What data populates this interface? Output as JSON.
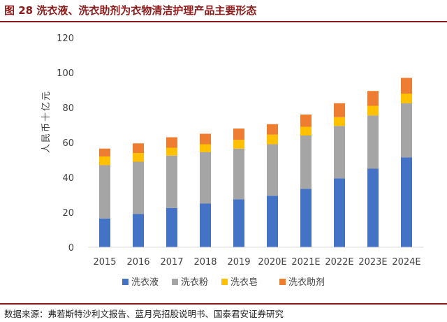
{
  "figure": {
    "title": "图 28 洗衣液、洗衣助剂为衣物清洁护理产品主要形态",
    "source": "数据来源：弗若斯特沙利文报告、蓝月亮招股说明书、国泰君安证券研究"
  },
  "chart_data": {
    "type": "bar",
    "stacked": true,
    "title": "",
    "xlabel": "",
    "ylabel": "人民币十亿元",
    "ylim": [
      0,
      120
    ],
    "yticks": [
      0,
      20,
      40,
      60,
      80,
      100,
      120
    ],
    "grid": false,
    "legend_position": "bottom",
    "categories": [
      "2015",
      "2016",
      "2017",
      "2018",
      "2019",
      "2020E",
      "2021E",
      "2022E",
      "2023E",
      "2024E"
    ],
    "series": [
      {
        "name": "洗衣液",
        "color": "#4472c4",
        "values": [
          16.5,
          19.0,
          22.5,
          25.0,
          27.5,
          29.5,
          33.5,
          39.5,
          45.0,
          51.5
        ]
      },
      {
        "name": "洗衣粉",
        "color": "#a5a5a5",
        "values": [
          30.5,
          30.0,
          30.0,
          29.5,
          29.0,
          29.5,
          30.5,
          30.0,
          30.5,
          31.0
        ]
      },
      {
        "name": "洗衣皂",
        "color": "#ffc000",
        "values": [
          5.0,
          5.0,
          4.5,
          4.5,
          5.0,
          5.5,
          5.0,
          5.0,
          5.5,
          5.5
        ]
      },
      {
        "name": "洗衣助剂",
        "color": "#ed7d31",
        "values": [
          4.5,
          5.5,
          6.0,
          6.0,
          6.5,
          6.0,
          7.0,
          8.0,
          8.5,
          9.0
        ]
      }
    ]
  }
}
